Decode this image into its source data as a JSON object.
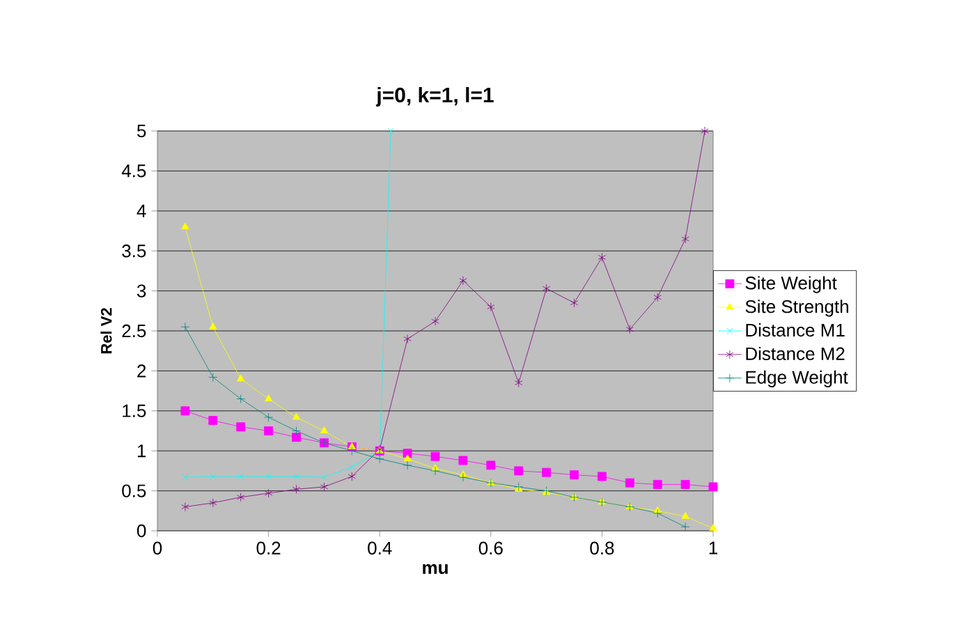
{
  "chart_data": {
    "type": "line",
    "title": "j=0, k=1, l=1",
    "xlabel": "mu",
    "ylabel": "Rel V2",
    "xlim": [
      0,
      1
    ],
    "xticks": [
      0,
      0.2,
      0.4,
      0.6,
      0.8,
      1
    ],
    "ylim": [
      0,
      5
    ],
    "yticks": [
      0,
      0.5,
      1,
      1.5,
      2,
      2.5,
      3,
      3.5,
      4,
      4.5,
      5
    ],
    "grid": "y",
    "legend": "right",
    "series": [
      {
        "name": "Site Weight",
        "color": "#ff00ff",
        "marker": "square",
        "x": [
          0.05,
          0.1,
          0.15,
          0.2,
          0.25,
          0.3,
          0.35,
          0.4,
          0.45,
          0.5,
          0.55,
          0.6,
          0.65,
          0.7,
          0.75,
          0.8,
          0.85,
          0.9,
          0.95,
          1
        ],
        "values": [
          1.5,
          1.38,
          1.3,
          1.25,
          1.17,
          1.1,
          1.05,
          1.0,
          0.97,
          0.93,
          0.88,
          0.82,
          0.75,
          0.73,
          0.7,
          0.68,
          0.6,
          0.58,
          0.58,
          0.55
        ]
      },
      {
        "name": "Site Strength",
        "color": "#ffff00",
        "marker": "triangle",
        "x": [
          0.05,
          0.1,
          0.15,
          0.2,
          0.25,
          0.3,
          0.35,
          0.4,
          0.45,
          0.5,
          0.55,
          0.6,
          0.65,
          0.7,
          0.75,
          0.8,
          0.85,
          0.9,
          0.95,
          1
        ],
        "values": [
          3.8,
          2.55,
          1.9,
          1.65,
          1.42,
          1.25,
          1.05,
          1.0,
          0.9,
          0.78,
          0.7,
          0.6,
          0.52,
          0.48,
          0.42,
          0.36,
          0.3,
          0.25,
          0.18,
          0.03
        ]
      },
      {
        "name": "Distance M1",
        "color": "#00ffff",
        "marker": "cross",
        "x": [
          0.05,
          0.1,
          0.15,
          0.2,
          0.25,
          0.3,
          0.35,
          0.4,
          0.42
        ],
        "values": [
          0.67,
          0.68,
          0.68,
          0.68,
          0.68,
          0.67,
          0.8,
          1.0,
          5
        ]
      },
      {
        "name": "Distance M2",
        "color": "#800080",
        "marker": "cross",
        "x": [
          0.05,
          0.1,
          0.15,
          0.2,
          0.25,
          0.3,
          0.35,
          0.4,
          0.45,
          0.5,
          0.55,
          0.6,
          0.65,
          0.7,
          0.75,
          0.8,
          0.85,
          0.9,
          0.95,
          0.985
        ],
        "values": [
          0.3,
          0.35,
          0.42,
          0.47,
          0.52,
          0.55,
          0.68,
          1.02,
          2.4,
          2.62,
          3.13,
          2.8,
          1.85,
          3.03,
          2.85,
          3.42,
          2.52,
          2.92,
          3.65,
          5
        ]
      },
      {
        "name": "Edge Weight",
        "color": "#008080",
        "marker": "cross",
        "x": [
          0.05,
          0.1,
          0.15,
          0.2,
          0.25,
          0.3,
          0.35,
          0.4,
          0.45,
          0.5,
          0.55,
          0.6,
          0.65,
          0.7,
          0.75,
          0.8,
          0.85,
          0.9,
          0.95
        ],
        "values": [
          2.55,
          1.92,
          1.65,
          1.42,
          1.25,
          1.1,
          1.0,
          0.9,
          0.82,
          0.75,
          0.67,
          0.6,
          0.55,
          0.5,
          0.42,
          0.36,
          0.3,
          0.22,
          0.05
        ]
      }
    ]
  }
}
